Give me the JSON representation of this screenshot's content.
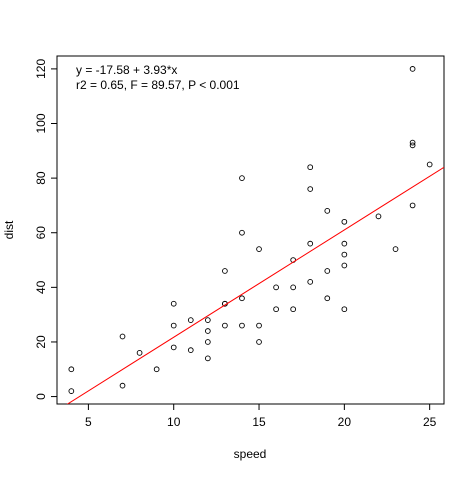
{
  "chart_data": {
    "type": "scatter",
    "x_label": "speed",
    "y_label": "dist",
    "annotations": [
      "y = -17.58 + 3.93*x",
      "r2 = 0.65, F = 89.57, P < 0.001"
    ],
    "x": [
      4,
      4,
      7,
      7,
      8,
      9,
      10,
      10,
      10,
      11,
      11,
      12,
      12,
      12,
      12,
      13,
      13,
      13,
      13,
      14,
      14,
      14,
      14,
      15,
      15,
      15,
      16,
      16,
      17,
      17,
      17,
      18,
      18,
      18,
      18,
      19,
      19,
      19,
      20,
      20,
      20,
      20,
      20,
      22,
      23,
      24,
      24,
      24,
      24,
      25
    ],
    "values": [
      2,
      10,
      4,
      22,
      16,
      10,
      18,
      26,
      34,
      17,
      28,
      14,
      20,
      24,
      28,
      26,
      34,
      34,
      46,
      26,
      36,
      60,
      80,
      20,
      26,
      54,
      32,
      40,
      32,
      40,
      50,
      42,
      56,
      76,
      84,
      36,
      46,
      68,
      32,
      48,
      52,
      56,
      64,
      66,
      54,
      70,
      92,
      93,
      120,
      85
    ],
    "color": "#000000",
    "fit": {
      "intercept": -17.58,
      "slope": 3.93,
      "color": "#ff0000"
    },
    "xlim": [
      3.16,
      25.84
    ],
    "ylim": [
      -2.72,
      124.72
    ],
    "xticks": [
      5,
      10,
      15,
      20,
      25
    ],
    "yticks": [
      0,
      20,
      40,
      60,
      80,
      100,
      120
    ]
  }
}
